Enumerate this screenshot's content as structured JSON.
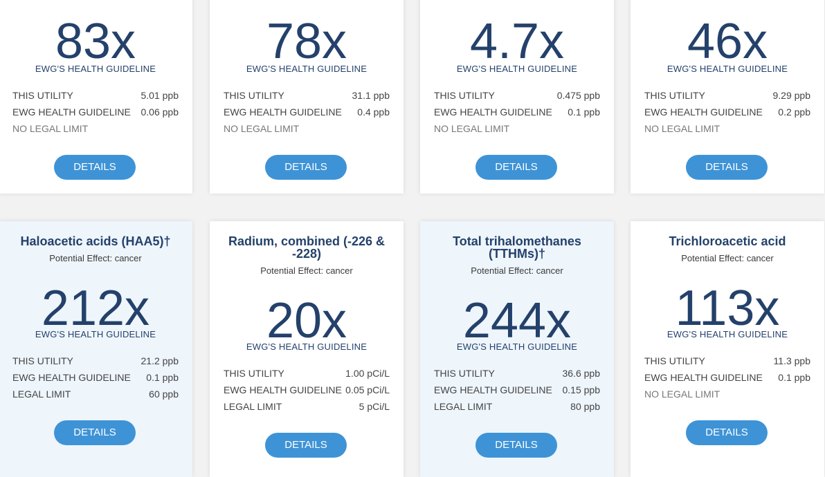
{
  "top_row": [
    {
      "multiplier": "83x",
      "guideline_label": "EWG'S HEALTH GUIDELINE",
      "rows": [
        {
          "label": "THIS UTILITY",
          "value": "5.01 ppb"
        },
        {
          "label": "EWG HEALTH GUIDELINE",
          "value": "0.06 ppb"
        },
        {
          "label": "NO LEGAL LIMIT",
          "value": ""
        }
      ],
      "button": "DETAILS"
    },
    {
      "multiplier": "78x",
      "guideline_label": "EWG'S HEALTH GUIDELINE",
      "rows": [
        {
          "label": "THIS UTILITY",
          "value": "31.1 ppb"
        },
        {
          "label": "EWG HEALTH GUIDELINE",
          "value": "0.4 ppb"
        },
        {
          "label": "NO LEGAL LIMIT",
          "value": ""
        }
      ],
      "button": "DETAILS"
    },
    {
      "multiplier": "4.7x",
      "guideline_label": "EWG'S HEALTH GUIDELINE",
      "rows": [
        {
          "label": "THIS UTILITY",
          "value": "0.475 ppb"
        },
        {
          "label": "EWG HEALTH GUIDELINE",
          "value": "0.1 ppb"
        },
        {
          "label": "NO LEGAL LIMIT",
          "value": ""
        }
      ],
      "button": "DETAILS"
    },
    {
      "multiplier": "46x",
      "guideline_label": "EWG'S HEALTH GUIDELINE",
      "rows": [
        {
          "label": "THIS UTILITY",
          "value": "9.29 ppb"
        },
        {
          "label": "EWG HEALTH GUIDELINE",
          "value": "0.2 ppb"
        },
        {
          "label": "NO LEGAL LIMIT",
          "value": ""
        }
      ],
      "button": "DETAILS"
    }
  ],
  "bottom_row": [
    {
      "title": "Haloacetic acids (HAA5)†",
      "effect": "Potential Effect: cancer",
      "multiplier": "212x",
      "guideline_label": "EWG'S HEALTH GUIDELINE",
      "rows": [
        {
          "label": "THIS UTILITY",
          "value": "21.2 ppb"
        },
        {
          "label": "EWG HEALTH GUIDELINE",
          "value": "0.1 ppb"
        },
        {
          "label": "LEGAL LIMIT",
          "value": "60 ppb"
        }
      ],
      "button": "DETAILS"
    },
    {
      "title": "Radium, combined (-226 & -228)",
      "effect": "Potential Effect: cancer",
      "multiplier": "20x",
      "guideline_label": "EWG'S HEALTH GUIDELINE",
      "rows": [
        {
          "label": "THIS UTILITY",
          "value": "1.00 pCi/L"
        },
        {
          "label": "EWG HEALTH GUIDELINE",
          "value": "0.05 pCi/L"
        },
        {
          "label": "LEGAL LIMIT",
          "value": "5 pCi/L"
        }
      ],
      "button": "DETAILS"
    },
    {
      "title": "Total trihalomethanes (TTHMs)†",
      "effect": "Potential Effect: cancer",
      "multiplier": "244x",
      "guideline_label": "EWG'S HEALTH GUIDELINE",
      "rows": [
        {
          "label": "THIS UTILITY",
          "value": "36.6 ppb"
        },
        {
          "label": "EWG HEALTH GUIDELINE",
          "value": "0.15 ppb"
        },
        {
          "label": "LEGAL LIMIT",
          "value": "80 ppb"
        }
      ],
      "button": "DETAILS"
    },
    {
      "title": "Trichloroacetic acid",
      "effect": "Potential Effect: cancer",
      "multiplier": "113x",
      "guideline_label": "EWG'S HEALTH GUIDELINE",
      "rows": [
        {
          "label": "THIS UTILITY",
          "value": "11.3 ppb"
        },
        {
          "label": "EWG HEALTH GUIDELINE",
          "value": "0.1 ppb"
        },
        {
          "label": "NO LEGAL LIMIT",
          "value": ""
        }
      ],
      "button": "DETAILS"
    }
  ]
}
